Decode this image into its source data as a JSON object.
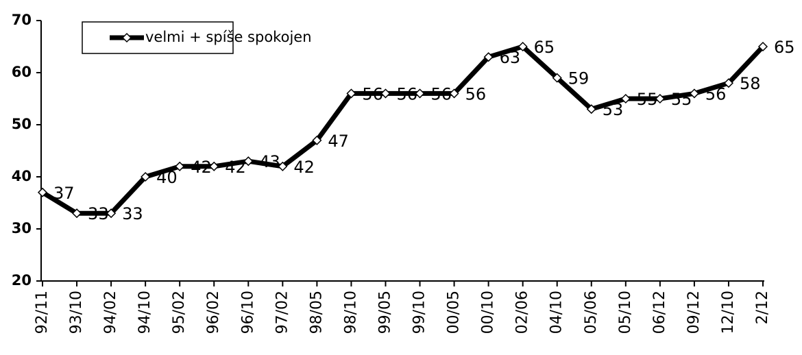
{
  "chart_data": {
    "type": "line",
    "categories": [
      "92/11",
      "93/10",
      "94/02",
      "94/10",
      "95/02",
      "96/02",
      "96/10",
      "97/02",
      "98/05",
      "98/10",
      "99/05",
      "99/10",
      "00/05",
      "00/10",
      "02/06",
      "04/10",
      "05/06",
      "05/10",
      "06/12",
      "09/12",
      "12/10",
      "2/12"
    ],
    "series": [
      {
        "name": "velmi + spíše spokojen",
        "color": "#000000",
        "values": [
          37,
          33,
          33,
          40,
          42,
          42,
          43,
          42,
          47,
          56,
          56,
          56,
          56,
          63,
          65,
          59,
          53,
          55,
          55,
          56,
          58,
          65
        ]
      }
    ],
    "ylim": [
      20,
      70
    ],
    "yticks": [
      20,
      30,
      40,
      50,
      60,
      70
    ],
    "grid": false,
    "legend": "top-left"
  }
}
